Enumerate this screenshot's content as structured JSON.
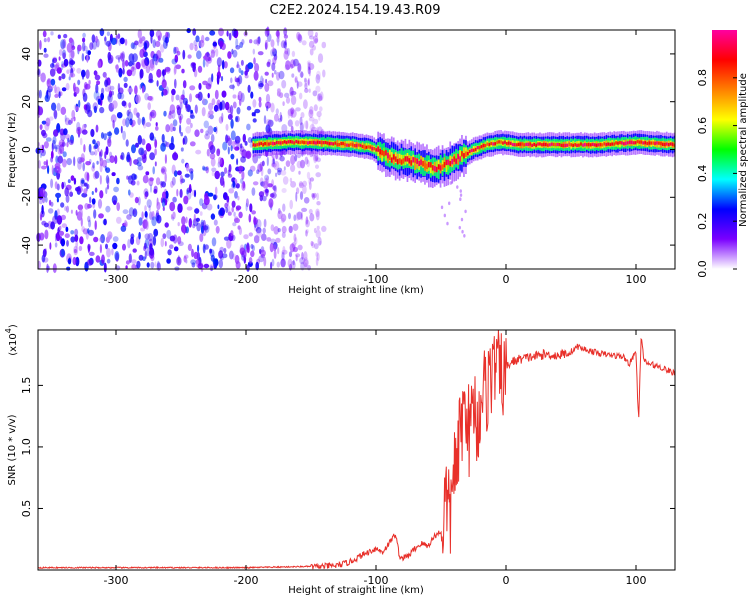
{
  "figure_title": "C2E2.2024.154.19.43.R09",
  "colors": {
    "snr_line": "#e8302a",
    "frame": "#000000",
    "background": "#ffffff"
  },
  "chart_data": [
    {
      "type": "heatmap",
      "title": "",
      "xlabel": "Height of straight line (km)",
      "ylabel": "Frequency (Hz)",
      "xlim": [
        -360,
        130
      ],
      "ylim": [
        -50,
        50
      ],
      "xticks": [
        -300,
        -200,
        -100,
        0,
        100
      ],
      "xtick_labels": [
        "-300",
        "-200",
        "-100",
        "0",
        "100"
      ],
      "yticks": [
        -40,
        -20,
        0,
        20,
        40
      ],
      "ytick_labels": [
        "-40",
        "-20",
        "0",
        "20",
        "40"
      ],
      "colorbar": {
        "label": "Normalized spectral amplitude",
        "range": [
          0,
          1
        ],
        "ticks": [
          0.0,
          0.2,
          0.4,
          0.6,
          0.8
        ],
        "tick_labels": [
          "0.0",
          "0.2",
          "0.4",
          "0.6",
          "0.8"
        ],
        "colormap": [
          "#ffffff",
          "#7a00ff",
          "#0000ff",
          "#00ffff",
          "#00ff00",
          "#ffff00",
          "#ff8000",
          "#ff0000",
          "#ff00a0"
        ]
      },
      "noise_region": {
        "x_from": -360,
        "x_to": -140,
        "freq_from": -50,
        "freq_to": 50
      },
      "signal_ridge": [
        {
          "x": -195,
          "f": 2
        },
        {
          "x": -170,
          "f": 3
        },
        {
          "x": -150,
          "f": 3
        },
        {
          "x": -120,
          "f": 2
        },
        {
          "x": -105,
          "f": 1
        },
        {
          "x": -95,
          "f": -2
        },
        {
          "x": -85,
          "f": -4
        },
        {
          "x": -75,
          "f": -5
        },
        {
          "x": -65,
          "f": -6
        },
        {
          "x": -55,
          "f": -8
        },
        {
          "x": -45,
          "f": -6
        },
        {
          "x": -35,
          "f": -3
        },
        {
          "x": -25,
          "f": 0
        },
        {
          "x": -15,
          "f": 2
        },
        {
          "x": -5,
          "f": 3
        },
        {
          "x": 10,
          "f": 2
        },
        {
          "x": 40,
          "f": 2
        },
        {
          "x": 70,
          "f": 2
        },
        {
          "x": 100,
          "f": 3
        },
        {
          "x": 130,
          "f": 2
        }
      ]
    },
    {
      "type": "line",
      "title": "",
      "xlabel": "Height of straight line (km)",
      "ylabel": "SNR (10 * v/v)",
      "y_multiplier": "(x10",
      "y_multiplier_exp": "4",
      "y_multiplier_close": ")",
      "xlim": [
        -360,
        130
      ],
      "ylim": [
        0,
        1.95
      ],
      "xticks": [
        -300,
        -200,
        -100,
        0,
        100
      ],
      "xtick_labels": [
        "-300",
        "-200",
        "-100",
        "0",
        "100"
      ],
      "yticks": [
        0.5,
        1.0,
        1.5
      ],
      "ytick_labels": [
        "0.5",
        "1.0",
        "1.5"
      ],
      "series": [
        {
          "x": [
            -360,
            -300,
            -200,
            -150,
            -130,
            -120,
            -110,
            -100,
            -95,
            -90,
            -85,
            -82,
            -80,
            -75,
            -70,
            -65,
            -60,
            -55,
            -50,
            -46,
            -43,
            -40,
            -38,
            -35,
            -32,
            -30,
            -28,
            -25,
            -22,
            -20,
            -18,
            -15,
            -12,
            -10,
            -8,
            -5,
            0,
            5,
            10,
            20,
            30,
            40,
            50,
            55,
            60,
            70,
            80,
            90,
            95,
            100,
            102,
            104,
            106,
            110,
            120,
            130
          ],
          "y": [
            0.02,
            0.02,
            0.02,
            0.03,
            0.04,
            0.07,
            0.13,
            0.18,
            0.15,
            0.22,
            0.3,
            0.12,
            0.1,
            0.12,
            0.18,
            0.22,
            0.2,
            0.28,
            0.32,
            0.7,
            0.45,
            1.0,
            0.8,
            1.25,
            1.35,
            1.45,
            1.1,
            1.5,
            1.2,
            1.4,
            1.58,
            1.5,
            1.72,
            1.6,
            1.82,
            1.65,
            1.66,
            1.7,
            1.72,
            1.74,
            1.76,
            1.75,
            1.78,
            1.82,
            1.8,
            1.77,
            1.75,
            1.74,
            1.68,
            1.78,
            1.2,
            1.92,
            1.7,
            1.68,
            1.65,
            1.6
          ]
        }
      ]
    }
  ]
}
